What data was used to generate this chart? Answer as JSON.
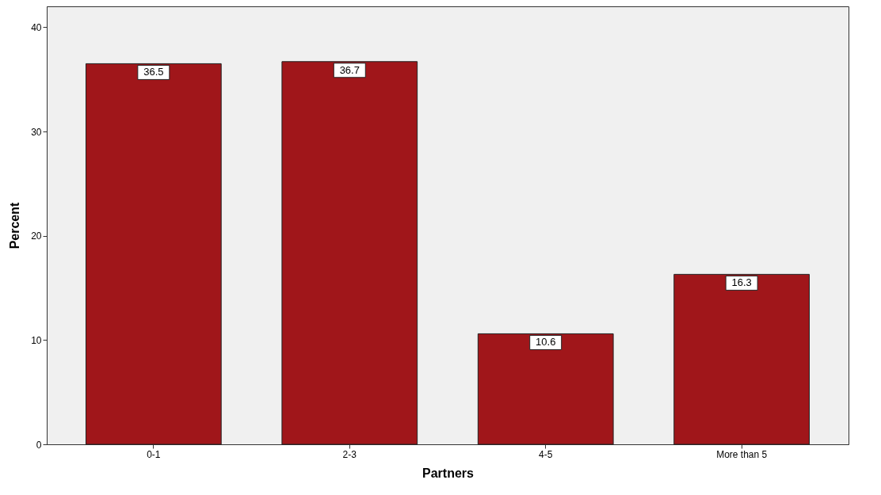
{
  "chart_data": {
    "type": "bar",
    "xlabel": "Partners",
    "ylabel": "Percent",
    "categories": [
      "0-1",
      "2-3",
      "4-5",
      "More than 5"
    ],
    "values": [
      36.5,
      36.7,
      10.6,
      16.3
    ],
    "color": "#a0161a",
    "ylim": [
      0,
      42
    ],
    "yticks": [
      0,
      10,
      20,
      30,
      40
    ],
    "grid": false,
    "data_labels": true
  }
}
